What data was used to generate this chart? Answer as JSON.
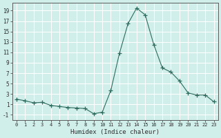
{
  "x": [
    0,
    1,
    2,
    3,
    4,
    5,
    6,
    7,
    8,
    9,
    10,
    11,
    12,
    13,
    14,
    15,
    16,
    17,
    18,
    19,
    20,
    21,
    22,
    23
  ],
  "y": [
    2.0,
    1.7,
    1.3,
    1.4,
    0.8,
    0.6,
    0.4,
    0.3,
    0.2,
    -0.8,
    -0.5,
    3.7,
    10.8,
    16.5,
    19.5,
    18.2,
    12.5,
    8.0,
    7.2,
    5.5,
    3.2,
    2.8,
    2.8,
    1.5
  ],
  "line_color": "#2e6b5e",
  "marker": "+",
  "marker_size": 4,
  "background_color": "#d0eeea",
  "grid_color": "#ffffff",
  "xlabel": "Humidex (Indice chaleur)",
  "xlim": [
    -0.5,
    23.5
  ],
  "ylim": [
    -2,
    20.5
  ],
  "yticks": [
    -1,
    1,
    3,
    5,
    7,
    9,
    11,
    13,
    15,
    17,
    19
  ],
  "xticks": [
    0,
    1,
    2,
    3,
    4,
    5,
    6,
    7,
    8,
    9,
    10,
    11,
    12,
    13,
    14,
    15,
    16,
    17,
    18,
    19,
    20,
    21,
    22,
    23
  ]
}
